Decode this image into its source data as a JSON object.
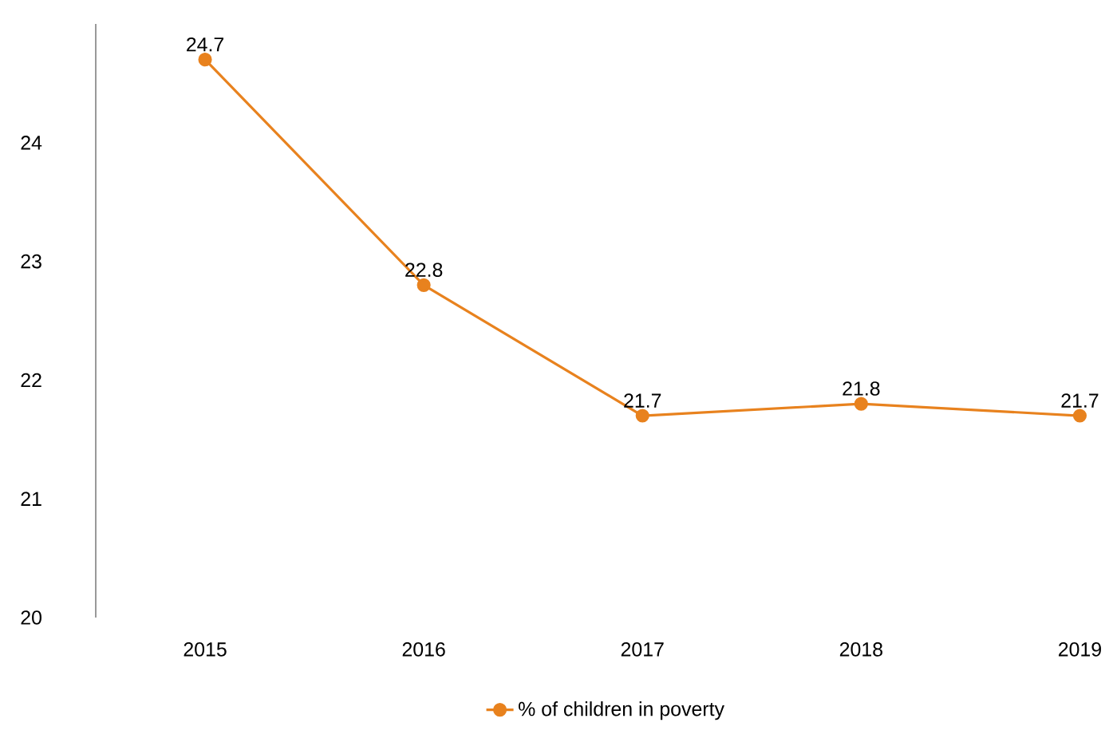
{
  "chart_data": {
    "type": "line",
    "categories": [
      "2015",
      "2016",
      "2017",
      "2018",
      "2019"
    ],
    "series": [
      {
        "name": "% of children in poverty",
        "color": "#e8821e",
        "values": [
          24.7,
          22.8,
          21.7,
          21.8,
          21.7
        ]
      }
    ],
    "ylim": [
      20,
      25
    ],
    "yticks": [
      20,
      21,
      22,
      23,
      24
    ],
    "data_labels": true,
    "marker": "circle",
    "legend": "bottom",
    "grid": false
  }
}
